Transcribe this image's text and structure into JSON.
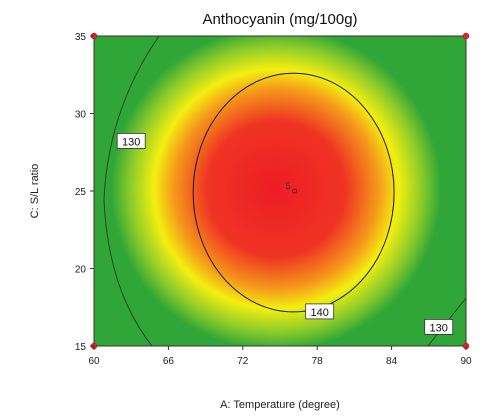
{
  "chart_data": {
    "type": "heatmap",
    "title": "Anthocyanin (mg/100g)",
    "xlabel": "A: Temperature (degree)",
    "ylabel": "C: S/L ratio",
    "xlim": [
      60,
      90
    ],
    "ylim": [
      15,
      35
    ],
    "x_ticks": [
      "60",
      "66",
      "72",
      "78",
      "84",
      "90"
    ],
    "y_ticks": [
      "15",
      "20",
      "25",
      "30",
      "35"
    ],
    "color_scale": [
      "#2fa637",
      "#f4ef10",
      "#ee1c25"
    ],
    "contours": [
      {
        "level": "140",
        "shape": "closed",
        "center": [
          76.1,
          24.9
        ],
        "rx": 8.1,
        "ry": 7.7
      },
      {
        "level": "130",
        "shape": "open",
        "side": "left"
      },
      {
        "level": "130",
        "shape": "open",
        "side": "bottom-right"
      }
    ],
    "contour_labels": [
      {
        "text": "130",
        "x": 63.0,
        "y": 28.2
      },
      {
        "text": "140",
        "x": 78.2,
        "y": 17.2
      },
      {
        "text": "130",
        "x": 87.8,
        "y": 16.2
      }
    ],
    "center_point": {
      "label": "5",
      "x": 76.1,
      "y": 25.0
    },
    "design_points": [
      {
        "x": 60,
        "y": 35
      },
      {
        "x": 90,
        "y": 35
      },
      {
        "x": 60,
        "y": 15
      },
      {
        "x": 90,
        "y": 15
      }
    ]
  }
}
